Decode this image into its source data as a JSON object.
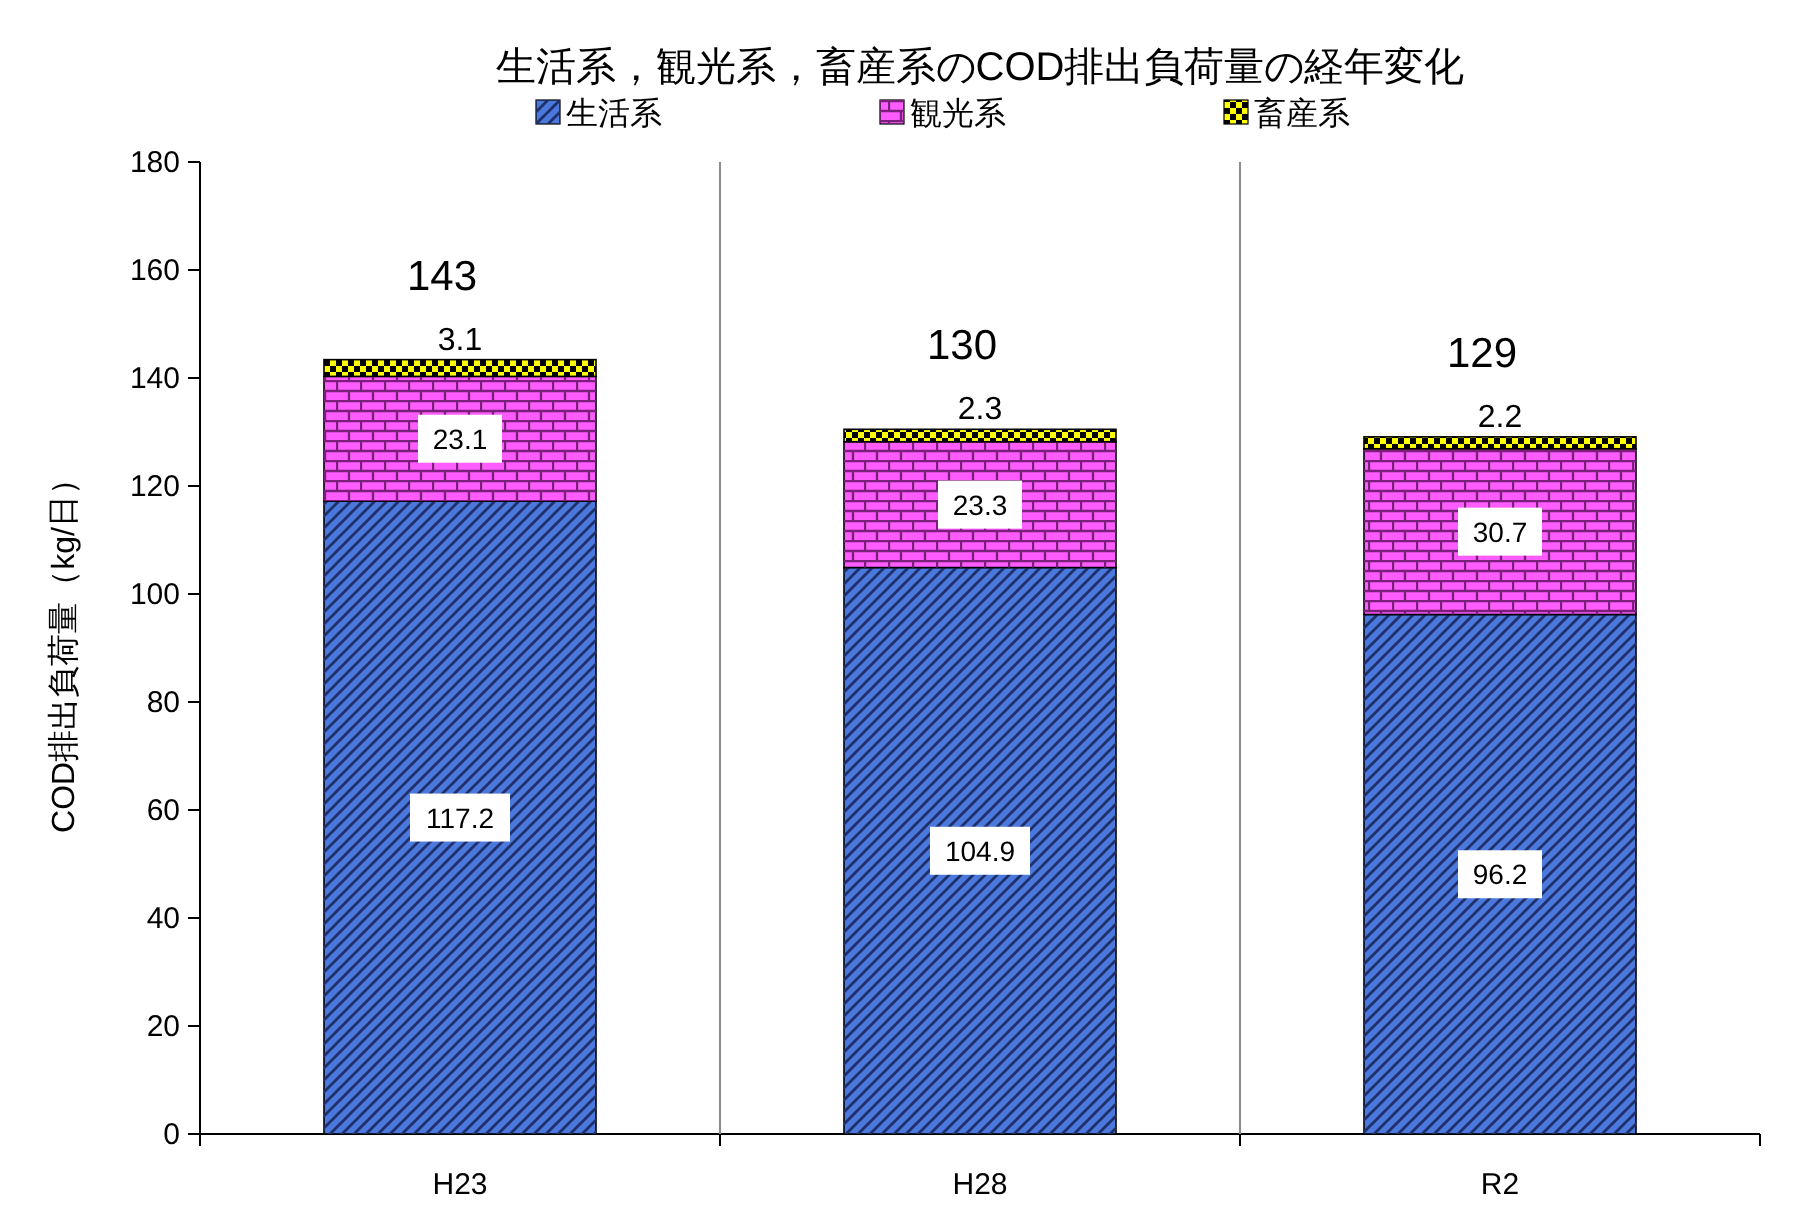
{
  "chart_data": {
    "type": "bar",
    "stacked": true,
    "title": "生活系，観光系，畜産系のCOD排出負荷量の経年変化",
    "ylabel": "COD排出負荷量（kg/日）",
    "categories": [
      "H23",
      "H28",
      "R2"
    ],
    "series": [
      {
        "name": "生活系",
        "color": "#4a78dc",
        "values": [
          117.2,
          104.9,
          96.2
        ]
      },
      {
        "name": "観光系",
        "color": "#ff5cff",
        "values": [
          23.1,
          23.3,
          30.7
        ]
      },
      {
        "name": "畜産系",
        "color": "#ffff00",
        "values": [
          3.1,
          2.3,
          2.2
        ]
      }
    ],
    "totals": [
      "143",
      "130",
      "129"
    ],
    "data_labels": true,
    "ylim": [
      0,
      180
    ],
    "yticks": [
      0,
      20,
      40,
      60,
      80,
      100,
      120,
      140,
      160,
      180
    ],
    "grid": "x",
    "legend": "top"
  }
}
